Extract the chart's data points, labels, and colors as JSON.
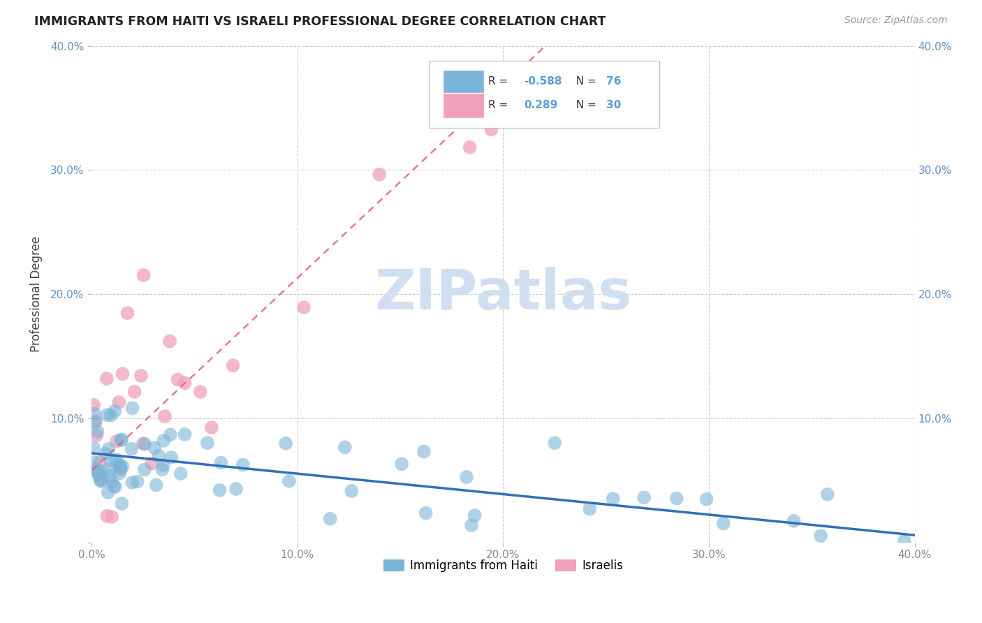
{
  "title": "IMMIGRANTS FROM HAITI VS ISRAELI PROFESSIONAL DEGREE CORRELATION CHART",
  "source": "Source: ZipAtlas.com",
  "ylabel": "Professional Degree",
  "x_min": 0.0,
  "x_max": 0.4,
  "y_min": 0.0,
  "y_max": 0.4,
  "haiti_scatter_color": "#7ab4d8",
  "israel_scatter_color": "#f0a0b8",
  "haiti_line_color": "#3070b8",
  "israel_line_color": "#e06080",
  "tick_color": "#6090c8",
  "background_color": "#ffffff",
  "grid_color": "#cccccc",
  "watermark_color": "#d0dff0",
  "haiti_intercept": 0.072,
  "haiti_slope": -0.165,
  "israel_intercept": 0.058,
  "israel_slope": 1.55,
  "haiti_seed": 77,
  "israel_seed": 88
}
